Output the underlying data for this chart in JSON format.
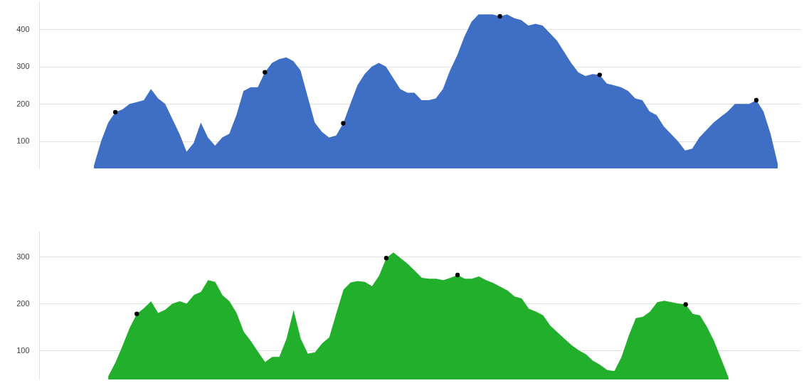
{
  "chart_data": [
    {
      "type": "area",
      "categories": [
        null,
        null,
        null,
        null,
        null,
        null,
        null,
        null,
        null,
        null,
        null,
        null,
        null,
        null,
        null,
        null,
        null,
        null,
        null,
        null,
        null,
        null,
        null,
        null,
        null,
        null,
        null,
        null,
        null,
        null,
        null,
        null,
        null,
        null,
        null,
        null,
        null,
        null,
        null,
        null,
        null,
        null,
        null,
        null,
        null,
        null,
        null,
        null,
        null,
        null,
        null,
        null,
        null,
        null,
        null,
        null,
        null,
        null,
        null,
        null,
        null,
        null,
        null,
        null,
        null,
        null,
        null,
        null,
        null,
        null,
        null,
        null,
        null,
        null,
        null,
        null,
        null,
        null,
        null,
        null,
        null,
        null,
        null,
        null,
        null,
        null,
        null,
        null,
        null,
        null,
        null,
        null,
        null,
        null,
        null,
        null,
        null
      ],
      "series": [
        {
          "color": "#3f6fc4",
          "values": [
            35,
            100,
            150,
            178,
            185,
            200,
            205,
            210,
            240,
            215,
            200,
            160,
            120,
            72,
            95,
            150,
            110,
            88,
            110,
            120,
            170,
            235,
            245,
            245,
            285,
            310,
            320,
            325,
            315,
            290,
            220,
            150,
            125,
            110,
            115,
            148,
            200,
            250,
            280,
            300,
            310,
            300,
            270,
            240,
            230,
            230,
            210,
            210,
            215,
            240,
            290,
            330,
            380,
            420,
            440,
            440,
            440,
            435,
            440,
            430,
            425,
            410,
            415,
            410,
            390,
            370,
            340,
            310,
            285,
            275,
            280,
            278,
            255,
            250,
            245,
            235,
            215,
            210,
            180,
            170,
            140,
            120,
            100,
            75,
            80,
            110,
            130,
            150,
            165,
            180,
            200,
            200,
            200,
            210,
            180,
            120,
            40
          ]
        },
        {
          "type": "scatter",
          "color": "#000000",
          "marker": "circle",
          "values": [
            null,
            null,
            null,
            178,
            null,
            null,
            null,
            null,
            null,
            null,
            null,
            null,
            null,
            null,
            null,
            null,
            null,
            null,
            null,
            null,
            null,
            null,
            null,
            null,
            285,
            null,
            null,
            null,
            null,
            null,
            null,
            null,
            null,
            null,
            null,
            148,
            null,
            null,
            null,
            null,
            null,
            null,
            null,
            null,
            null,
            null,
            null,
            null,
            null,
            null,
            null,
            null,
            null,
            null,
            null,
            null,
            null,
            435,
            null,
            null,
            null,
            null,
            null,
            null,
            null,
            null,
            null,
            null,
            null,
            null,
            null,
            278,
            null,
            null,
            null,
            null,
            null,
            null,
            null,
            null,
            null,
            null,
            null,
            null,
            null,
            null,
            null,
            null,
            null,
            null,
            null,
            null,
            null,
            210,
            null,
            null,
            null
          ]
        }
      ],
      "ylim": [
        27,
        475
      ],
      "yticks": [
        100,
        200,
        300,
        400
      ],
      "grid": "y",
      "tick_labels": "y",
      "legend": false
    },
    {
      "type": "area",
      "categories": [
        null,
        null,
        null,
        null,
        null,
        null,
        null,
        null,
        null,
        null,
        null,
        null,
        null,
        null,
        null,
        null,
        null,
        null,
        null,
        null,
        null,
        null,
        null,
        null,
        null,
        null,
        null,
        null,
        null,
        null,
        null,
        null,
        null,
        null,
        null,
        null,
        null,
        null,
        null,
        null,
        null,
        null,
        null,
        null,
        null,
        null,
        null,
        null,
        null,
        null,
        null,
        null,
        null,
        null,
        null,
        null,
        null,
        null,
        null,
        null,
        null,
        null,
        null,
        null,
        null,
        null,
        null,
        null,
        null,
        null,
        null,
        null,
        null,
        null,
        null,
        null,
        null,
        null,
        null,
        null,
        null,
        null,
        null,
        null,
        null,
        null,
        null,
        null
      ],
      "series": [
        {
          "color": "#22b02c",
          "values": [
            45,
            74,
            110,
            148,
            178,
            190,
            205,
            180,
            187,
            200,
            205,
            200,
            218,
            225,
            250,
            246,
            218,
            205,
            180,
            140,
            120,
            97,
            75,
            86,
            86,
            125,
            186,
            125,
            93,
            96,
            115,
            128,
            180,
            230,
            245,
            248,
            246,
            237,
            260,
            297,
            309,
            297,
            285,
            270,
            255,
            253,
            253,
            250,
            255,
            261,
            253,
            253,
            258,
            250,
            244,
            236,
            228,
            215,
            211,
            189,
            183,
            175,
            153,
            139,
            125,
            111,
            100,
            92,
            78,
            69,
            58,
            56,
            86,
            131,
            169,
            172,
            183,
            203,
            206,
            203,
            200,
            198,
            178,
            175,
            150,
            119,
            81,
            42
          ]
        },
        {
          "type": "scatter",
          "color": "#000000",
          "marker": "circle",
          "values": [
            null,
            null,
            null,
            null,
            178,
            null,
            null,
            null,
            null,
            null,
            null,
            null,
            null,
            null,
            null,
            null,
            null,
            null,
            null,
            null,
            null,
            null,
            null,
            null,
            null,
            null,
            null,
            null,
            null,
            null,
            null,
            null,
            null,
            null,
            null,
            null,
            null,
            null,
            null,
            297,
            null,
            null,
            null,
            null,
            null,
            null,
            null,
            null,
            null,
            261,
            null,
            null,
            null,
            null,
            null,
            null,
            null,
            null,
            null,
            null,
            null,
            null,
            null,
            null,
            null,
            null,
            null,
            null,
            null,
            null,
            null,
            null,
            null,
            null,
            null,
            null,
            null,
            null,
            null,
            null,
            null,
            198,
            null,
            null,
            null,
            null,
            null,
            null
          ]
        }
      ],
      "ylim": [
        38,
        355
      ],
      "yticks": [
        100,
        200,
        300
      ],
      "grid": "y",
      "tick_labels": "y",
      "legend": false
    }
  ]
}
